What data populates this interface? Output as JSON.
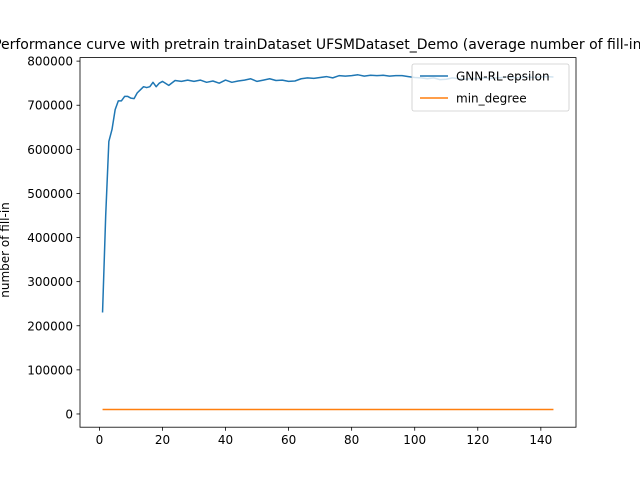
{
  "chart_data": {
    "type": "line",
    "title": "Performance curve with pretrain trainDataset UFSMDataset_Demo (average number of fill-in)",
    "xlabel": "",
    "ylabel": "number of fill-in",
    "xlim": [
      -6.15,
      151.15
    ],
    "ylim": [
      -30000,
      808000
    ],
    "xticks": [
      0,
      20,
      40,
      60,
      80,
      100,
      120,
      140
    ],
    "yticks": [
      0,
      100000,
      200000,
      300000,
      400000,
      500000,
      600000,
      700000,
      800000
    ],
    "grid": false,
    "legend_position": "top-right",
    "series": [
      {
        "name": "GNN-RL-epsilon",
        "color": "#1f77b4",
        "x": [
          1,
          2,
          3,
          4,
          5,
          6,
          7,
          8,
          9,
          10,
          11,
          12,
          13,
          14,
          15,
          16,
          17,
          18,
          19,
          20,
          22,
          24,
          26,
          28,
          30,
          32,
          34,
          36,
          38,
          40,
          42,
          44,
          46,
          48,
          50,
          52,
          54,
          56,
          58,
          60,
          62,
          64,
          66,
          68,
          70,
          72,
          74,
          76,
          78,
          80,
          82,
          84,
          86,
          88,
          90,
          92,
          94,
          96,
          98,
          100,
          102,
          104,
          106,
          108,
          110,
          112,
          114,
          116,
          118,
          120,
          122,
          124,
          126,
          128,
          130,
          132,
          134,
          136,
          138,
          140,
          142,
          144
        ],
        "y": [
          230000,
          450000,
          618000,
          645000,
          690000,
          710000,
          710000,
          720000,
          720000,
          716000,
          715000,
          728000,
          735000,
          742000,
          740000,
          742000,
          752000,
          742000,
          750000,
          754000,
          745000,
          756000,
          754000,
          757000,
          754000,
          757000,
          752000,
          755000,
          750000,
          757000,
          752000,
          755000,
          757000,
          760000,
          754000,
          757000,
          760000,
          756000,
          757000,
          754000,
          755000,
          760000,
          762000,
          761000,
          763000,
          765000,
          762000,
          767000,
          766000,
          767000,
          769000,
          766000,
          768000,
          767000,
          768000,
          766000,
          767000,
          767000,
          765000,
          763000,
          762000,
          760000,
          762000,
          758000,
          759000,
          762000,
          760000,
          759000,
          761000,
          760000,
          762000,
          761000,
          762000,
          763000,
          764000,
          762000,
          763000,
          764000,
          763000,
          764000,
          765000,
          764000
        ]
      },
      {
        "name": "min_degree",
        "color": "#ff7f0e",
        "x": [
          1,
          144
        ],
        "y": [
          10000,
          10000
        ]
      }
    ]
  }
}
